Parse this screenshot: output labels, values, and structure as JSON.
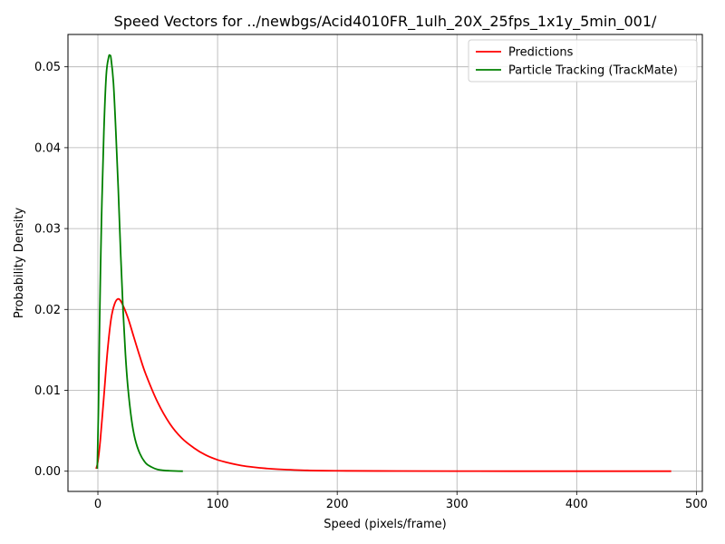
{
  "chart_data": {
    "type": "line",
    "title": "Speed Vectors for ../newbgs/Acid4010FR_1ulh_20X_25fps_1x1y_5min_001/",
    "xlabel": "Speed (pixels/frame)",
    "ylabel": "Probability Density",
    "xlim": [
      -25,
      505
    ],
    "ylim": [
      -0.0025,
      0.054
    ],
    "xticks": [
      0,
      100,
      200,
      300,
      400,
      500
    ],
    "xtick_labels": [
      "0",
      "100",
      "200",
      "300",
      "400",
      "500"
    ],
    "yticks": [
      0.0,
      0.01,
      0.02,
      0.03,
      0.04,
      0.05
    ],
    "ytick_labels": [
      "0.00",
      "0.01",
      "0.02",
      "0.03",
      "0.04",
      "0.05"
    ],
    "grid": true,
    "legend_position": "top-right",
    "series": [
      {
        "name": "Predictions",
        "color": "#ff0000",
        "x": [
          -1.5,
          0,
          2,
          5,
          8,
          11,
          14,
          17,
          20,
          25,
          30,
          35,
          40,
          50,
          60,
          70,
          80,
          90,
          100,
          110,
          120,
          130,
          140,
          150,
          175,
          200,
          250,
          300,
          350,
          400,
          450,
          479
        ],
        "y": [
          0.0003,
          0.0012,
          0.0038,
          0.0092,
          0.0148,
          0.0188,
          0.0207,
          0.0213,
          0.0208,
          0.019,
          0.0166,
          0.0142,
          0.012,
          0.0085,
          0.0059,
          0.0041,
          0.0029,
          0.002,
          0.0014,
          0.001,
          0.0007,
          0.0005,
          0.00035,
          0.00025,
          0.0001,
          5e-05,
          2e-05,
          1e-05,
          0.0,
          0.0,
          0.0,
          0.0
        ]
      },
      {
        "name": "Particle Tracking (TrackMate)",
        "color": "#008000",
        "x": [
          -0.5,
          0.5,
          1.5,
          3,
          5,
          7,
          9,
          10,
          11,
          13,
          15,
          17,
          19,
          21,
          23,
          25,
          28,
          31,
          35,
          40,
          45,
          50,
          55,
          60,
          65,
          71
        ],
        "y": [
          0.0003,
          0.008,
          0.019,
          0.031,
          0.042,
          0.049,
          0.0512,
          0.0514,
          0.051,
          0.048,
          0.042,
          0.035,
          0.027,
          0.02,
          0.0145,
          0.0105,
          0.0065,
          0.004,
          0.0022,
          0.001,
          0.0005,
          0.0002,
          0.0001,
          5e-05,
          2e-05,
          0.0
        ]
      }
    ]
  }
}
